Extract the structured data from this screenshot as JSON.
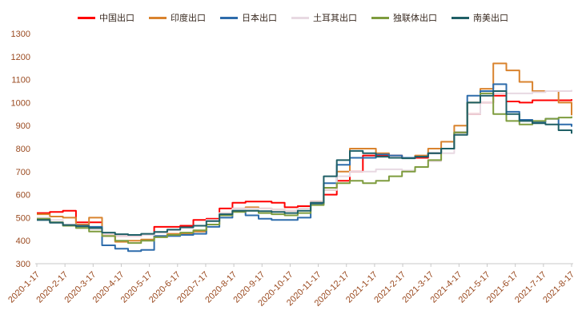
{
  "chart_data": {
    "type": "line",
    "title": "",
    "grid": false,
    "legend_position": "top",
    "ylim": [
      300,
      1300
    ],
    "y_tick_step": 100,
    "axis_label_color": "#9a4a20",
    "axis_line_color": "#c8c8c8",
    "x_tick_labels": [
      "2020-1-17",
      "2020-2-17",
      "2020-3-17",
      "2020-4-17",
      "2020-5-17",
      "2020-6-17",
      "2020-7-17",
      "2020-8-17",
      "2020-9-17",
      "2020-10-17",
      "2020-11-17",
      "2020-12-17",
      "2021-1-17",
      "2021-2-17",
      "2021-3-17",
      "2021-4-17",
      "2021-5-17",
      "2021-6-17",
      "2021-7-17",
      "2021-8-17"
    ],
    "series": [
      {
        "name": "中国出口",
        "color": "#ff0000",
        "values": [
          520,
          525,
          530,
          480,
          480,
          430,
          420,
          420,
          425,
          460,
          460,
          465,
          490,
          495,
          540,
          565,
          570,
          570,
          565,
          545,
          550,
          570,
          600,
          660,
          700,
          770,
          770,
          770,
          760,
          760,
          780,
          800,
          870,
          950,
          1000,
          1030,
          1005,
          1000,
          1010,
          1010,
          1010,
          1015
        ]
      },
      {
        "name": "印度出口",
        "color": "#d9832e",
        "values": [
          515,
          505,
          500,
          470,
          500,
          420,
          395,
          400,
          405,
          420,
          430,
          430,
          440,
          470,
          520,
          540,
          545,
          540,
          535,
          530,
          540,
          570,
          620,
          700,
          800,
          800,
          780,
          760,
          760,
          770,
          800,
          830,
          900,
          1000,
          1060,
          1170,
          1140,
          1090,
          1050,
          1050,
          1000,
          945
        ]
      },
      {
        "name": "日本出口",
        "color": "#2e6cab",
        "values": [
          490,
          480,
          470,
          465,
          460,
          380,
          365,
          355,
          360,
          420,
          420,
          425,
          430,
          460,
          500,
          530,
          510,
          495,
          490,
          490,
          500,
          560,
          650,
          730,
          760,
          760,
          775,
          770,
          760,
          765,
          780,
          800,
          870,
          1030,
          1050,
          1080,
          960,
          925,
          915,
          930,
          905,
          895
        ]
      },
      {
        "name": "土耳其出口",
        "color": "#e8d9e2",
        "values": [
          500,
          490,
          470,
          460,
          450,
          430,
          420,
          420,
          425,
          435,
          445,
          455,
          465,
          490,
          520,
          540,
          540,
          540,
          535,
          530,
          540,
          570,
          620,
          680,
          700,
          700,
          710,
          710,
          705,
          720,
          745,
          780,
          860,
          950,
          1000,
          1040,
          1040,
          1040,
          1045,
          1050,
          1050,
          1055
        ]
      },
      {
        "name": "独联体出口",
        "color": "#7e9c3e",
        "values": [
          495,
          480,
          465,
          455,
          440,
          420,
          400,
          390,
          400,
          415,
          425,
          435,
          445,
          470,
          510,
          525,
          530,
          520,
          515,
          510,
          520,
          555,
          630,
          650,
          660,
          650,
          660,
          680,
          700,
          720,
          750,
          800,
          870,
          1000,
          1040,
          950,
          920,
          905,
          920,
          930,
          935,
          940
        ]
      },
      {
        "name": "南美出口",
        "color": "#1f5f66",
        "values": [
          490,
          478,
          468,
          462,
          455,
          435,
          428,
          425,
          430,
          438,
          448,
          458,
          465,
          485,
          515,
          530,
          530,
          528,
          525,
          520,
          530,
          565,
          680,
          750,
          790,
          780,
          765,
          760,
          758,
          765,
          780,
          800,
          860,
          1000,
          1030,
          1050,
          950,
          920,
          910,
          905,
          880,
          865
        ]
      }
    ]
  }
}
